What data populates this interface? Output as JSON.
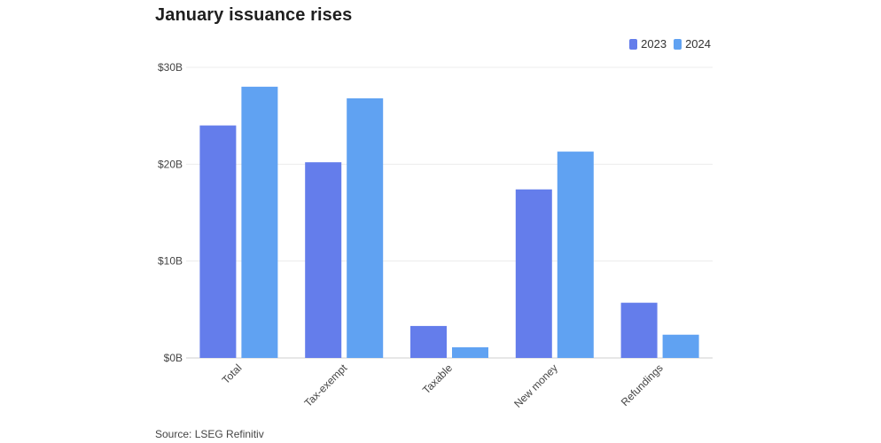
{
  "chart_data": {
    "type": "bar",
    "title": "January issuance rises",
    "source": "Source: LSEG Refinitiv",
    "categories": [
      "Total",
      "Tax-exempt",
      "Taxable",
      "New money",
      "Refundings"
    ],
    "series": [
      {
        "name": "2023",
        "color": "#647deb",
        "values": [
          24.0,
          20.2,
          3.3,
          17.4,
          5.7
        ]
      },
      {
        "name": "2024",
        "color": "#60a2f2",
        "values": [
          28.0,
          26.8,
          1.1,
          21.3,
          2.4
        ]
      }
    ],
    "ylim": [
      0,
      30
    ],
    "yticks": [
      0,
      10,
      20,
      30
    ],
    "ytick_labels": [
      "$0B",
      "$10B",
      "$20B",
      "$30B"
    ],
    "xlabel": "",
    "ylabel": "",
    "grid": true,
    "legend_position": "top-right"
  }
}
